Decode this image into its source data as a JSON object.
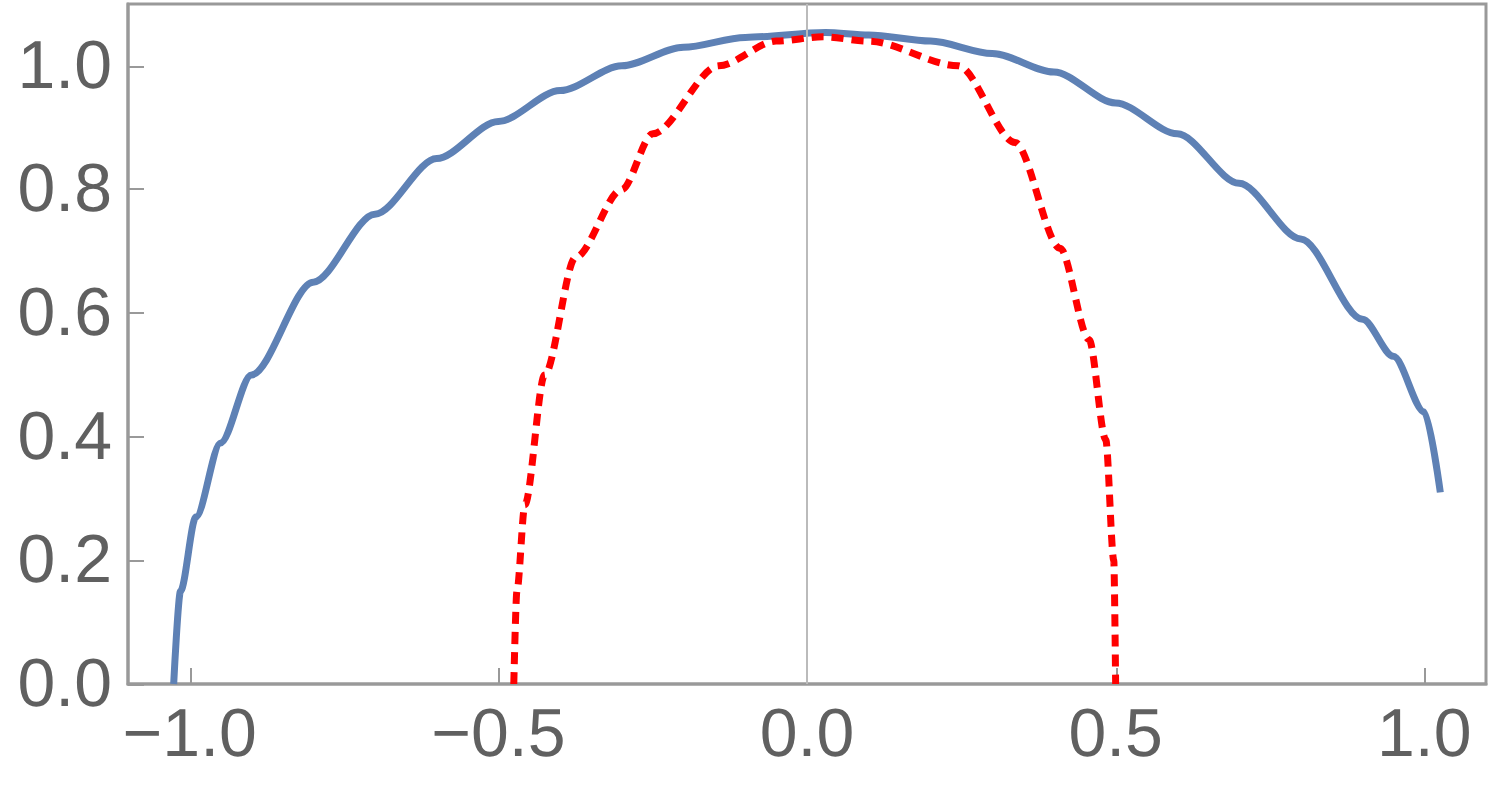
{
  "chart_data": {
    "type": "line",
    "marker": "none",
    "grid": false,
    "xlim": [
      -1.1,
      1.1
    ],
    "xticks": [
      {
        "value": -1.0,
        "label": "−1.0"
      },
      {
        "value": -0.5,
        "label": "−0.5"
      },
      {
        "value": 0,
        "label": "0.0"
      },
      {
        "value": 0.5,
        "label": "0.5"
      },
      {
        "value": 1.0,
        "label": "1.0"
      }
    ],
    "ylim": [
      0,
      1.1
    ],
    "yticks": [
      {
        "value": 0,
        "label": "0.0"
      },
      {
        "value": 0.2,
        "label": "0.2"
      },
      {
        "value": 0.4,
        "label": "0.4"
      },
      {
        "value": 0.6,
        "label": "0.6"
      },
      {
        "value": 0.8,
        "label": "0.8"
      },
      {
        "value": 1.0,
        "label": "1.0"
      }
    ],
    "ref_lines": [
      {
        "axis": "x",
        "value": 0,
        "color": "#bbbbbb",
        "line_style": "solid"
      }
    ],
    "series": [
      {
        "color": "#5e81b5",
        "line_style": "solid",
        "x": [
          -1.026,
          -1.015,
          -0.99,
          -0.95,
          -0.9,
          -0.8,
          -0.7,
          -0.6,
          -0.5,
          -0.4,
          -0.3,
          -0.2,
          -0.1,
          0.03,
          0.1,
          0.2,
          0.3,
          0.4,
          0.5,
          0.6,
          0.7,
          0.8,
          0.9,
          0.95,
          1.0,
          1.026
        ],
        "values": [
          0,
          0.15,
          0.27,
          0.39,
          0.5,
          0.65,
          0.76,
          0.85,
          0.91,
          0.96,
          1.0,
          1.03,
          1.046,
          1.054,
          1.05,
          1.04,
          1.02,
          0.99,
          0.94,
          0.89,
          0.81,
          0.72,
          0.59,
          0.53,
          0.44,
          0.31
        ]
      },
      {
        "color": "#ff0000",
        "line_style": "dashed",
        "x": [
          -0.475,
          -0.47,
          -0.457,
          -0.425,
          -0.375,
          -0.3,
          -0.25,
          -0.143,
          -0.05,
          0.026,
          0.1,
          0.245,
          0.337,
          0.41,
          0.457,
          0.484,
          0.497,
          0.5
        ],
        "values": [
          0,
          0.15,
          0.29,
          0.5,
          0.69,
          0.8,
          0.89,
          1.0,
          1.04,
          1.047,
          1.04,
          1.0,
          0.876,
          0.705,
          0.557,
          0.395,
          0.2,
          0
        ]
      }
    ]
  }
}
